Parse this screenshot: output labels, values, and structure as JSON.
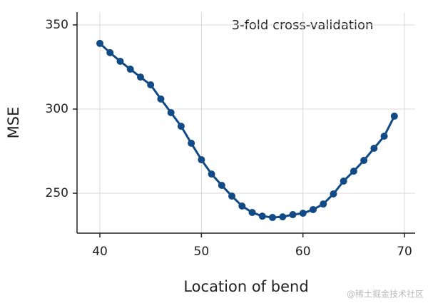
{
  "chart_data": {
    "type": "line",
    "annotation": "3-fold cross-validation",
    "x_label": "Location of bend",
    "y_label": "MSE",
    "x": [
      40,
      41,
      42,
      43,
      44,
      45,
      46,
      47,
      48,
      49,
      50,
      51,
      52,
      53,
      54,
      55,
      56,
      57,
      58,
      59,
      60,
      61,
      62,
      63,
      64,
      65,
      66,
      67,
      68,
      69
    ],
    "series": [
      {
        "color": "#114a85",
        "values": [
          339,
          333.5,
          328.4,
          323.7,
          319,
          314.4,
          306,
          297.9,
          289.8,
          279.7,
          269.9,
          261.4,
          254.7,
          248.3,
          242.4,
          238.6,
          236.4,
          235.6,
          236,
          237.3,
          238.1,
          240.3,
          243.6,
          249.6,
          257.2,
          263.1,
          269.5,
          276.7,
          283.9,
          295.8
        ]
      }
    ],
    "xlim": [
      37.75,
      71.05
    ],
    "ylim": [
      226.3,
      357.6
    ],
    "xticks": [
      40,
      50,
      60,
      70
    ],
    "yticks": [
      250,
      300,
      350
    ],
    "grid": true
  },
  "watermark": "@稀土掘金技术社区"
}
